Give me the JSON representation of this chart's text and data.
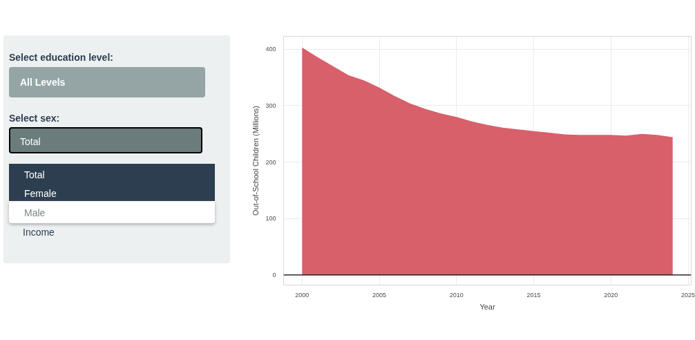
{
  "chart_data": {
    "type": "area",
    "xlabel": "Year",
    "ylabel": "Out-of-School Children (Millions)",
    "annotations": [
      "Select education level:",
      "All Levels",
      "Select sex:",
      "Total",
      "Total",
      "Female",
      "Male",
      "Income"
    ],
    "x": [
      2000,
      2001,
      2002,
      2003,
      2004,
      2005,
      2006,
      2007,
      2008,
      2009,
      2010,
      2011,
      2012,
      2013,
      2014,
      2015,
      2016,
      2017,
      2018,
      2019,
      2020,
      2021,
      2022,
      2023,
      2024
    ],
    "series": [
      {
        "color": "#d55763",
        "values": [
          403,
          386,
          370,
          354,
          345,
          332,
          317,
          304,
          294,
          286,
          280,
          272,
          266,
          261,
          258,
          255,
          252,
          249,
          248,
          248,
          248,
          247,
          250,
          248,
          244
        ]
      }
    ],
    "xlim": [
      1998.8,
      2025.2
    ],
    "xticks": [
      2000,
      2005,
      2010,
      2015,
      2020,
      2025
    ],
    "ylim": [
      -18,
      423
    ],
    "yticks": [
      0,
      100,
      200,
      300,
      400
    ],
    "ref_lines": [
      {
        "axis": "y",
        "value": 0,
        "color": "#000000"
      }
    ],
    "grid": true
  }
}
